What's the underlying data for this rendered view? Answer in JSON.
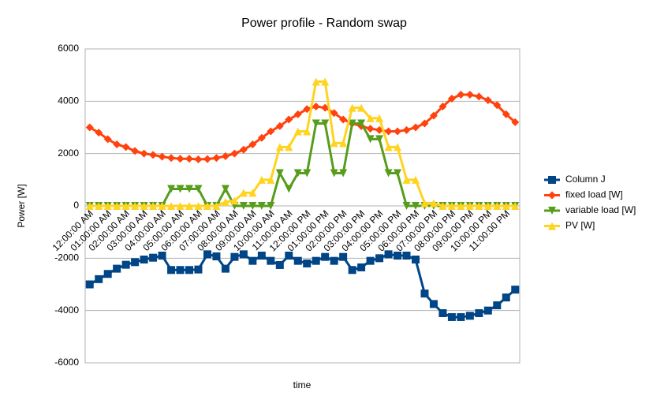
{
  "chart_data": {
    "type": "line",
    "title": "Power profile - Random swap",
    "x_label": "time",
    "y_label": "Power [W]",
    "categories": [
      "12:00:00 AM",
      null,
      "01:00:00 AM",
      null,
      "02:00:00 AM",
      null,
      "03:00:00 AM",
      null,
      "04:00:00 AM",
      null,
      "05:00:00 AM",
      null,
      "06:00:00 AM",
      null,
      "07:00:00 AM",
      null,
      "08:00:00 AM",
      null,
      "09:00:00 AM",
      null,
      "10:00:00 AM",
      null,
      "11:00:00 AM",
      null,
      "12:00:00 PM",
      null,
      "01:00:00 PM",
      null,
      "02:00:00 PM",
      null,
      "03:00:00 PM",
      null,
      "04:00:00 PM",
      null,
      "05:00:00 PM",
      null,
      "06:00:00 PM",
      null,
      "07:00:00 PM",
      null,
      "08:00:00 PM",
      null,
      "09:00:00 PM",
      null,
      "10:00:00 PM",
      null,
      "11:00:00 PM",
      null
    ],
    "series": [
      {
        "name": "Column J",
        "color": "#004586",
        "marker": "square",
        "values": [
          -3000,
          -2800,
          -2600,
          -2400,
          -2250,
          -2150,
          -2050,
          -1980,
          -1900,
          -2450,
          -2450,
          -2450,
          -2430,
          -1850,
          -1930,
          -2400,
          -1950,
          -1850,
          -2100,
          -1900,
          -2100,
          -2260,
          -1900,
          -2100,
          -2200,
          -2100,
          -1950,
          -2100,
          -1950,
          -2450,
          -2350,
          -2100,
          -2000,
          -1850,
          -1900,
          -1900,
          -2050,
          -3350,
          -3750,
          -4100,
          -4250,
          -4250,
          -4200,
          -4100,
          -4000,
          -3800,
          -3500,
          -3200
        ]
      },
      {
        "name": "fixed load [W]",
        "color": "#ff420e",
        "marker": "diamond",
        "values": [
          3000,
          2800,
          2550,
          2350,
          2250,
          2100,
          2000,
          1950,
          1880,
          1830,
          1800,
          1800,
          1780,
          1790,
          1830,
          1900,
          2000,
          2150,
          2350,
          2600,
          2850,
          3050,
          3300,
          3500,
          3700,
          3800,
          3750,
          3550,
          3300,
          3150,
          3050,
          2950,
          2900,
          2850,
          2850,
          2900,
          3000,
          3150,
          3450,
          3800,
          4100,
          4250,
          4250,
          4180,
          4040,
          3850,
          3500,
          3200
        ]
      },
      {
        "name": "variable load [W]",
        "color": "#579d1c",
        "marker": "down",
        "values": [
          0,
          0,
          0,
          0,
          0,
          0,
          0,
          0,
          0,
          650,
          650,
          650,
          650,
          0,
          0,
          650,
          0,
          0,
          0,
          0,
          0,
          1250,
          650,
          1250,
          1250,
          3150,
          3150,
          1250,
          1250,
          3150,
          3150,
          2550,
          2550,
          1250,
          1250,
          0,
          0,
          0,
          0,
          0,
          0,
          0,
          0,
          0,
          0,
          0,
          0,
          0
        ]
      },
      {
        "name": "PV [W]",
        "color": "#ffd320",
        "marker": "up",
        "values": [
          0,
          0,
          0,
          0,
          0,
          0,
          0,
          0,
          0,
          0,
          0,
          0,
          0,
          0,
          0,
          150,
          200,
          500,
          500,
          1000,
          1000,
          2250,
          2250,
          2850,
          2850,
          4750,
          4750,
          2400,
          2400,
          3750,
          3750,
          3350,
          3350,
          2250,
          2250,
          1000,
          1000,
          100,
          100,
          0,
          0,
          0,
          0,
          0,
          0,
          0,
          0,
          0
        ]
      }
    ],
    "ylim": [
      -6000,
      6000
    ],
    "yticks": [
      -6000,
      -4000,
      -2000,
      0,
      2000,
      4000,
      6000
    ],
    "grid": true,
    "legend": "right"
  }
}
